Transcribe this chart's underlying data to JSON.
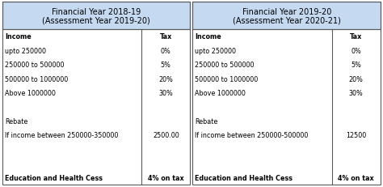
{
  "left_table": {
    "header_line1": "Financial Year 2018-19",
    "header_line2": "(Assessment Year 2019-20)",
    "header_bg": "#c5d9f1",
    "col1_header": "Income",
    "col2_header": "Tax",
    "rows": [
      [
        "upto 250000",
        "0%"
      ],
      [
        "250000 to 500000",
        "5%"
      ],
      [
        "500000 to 1000000",
        "20%"
      ],
      [
        "Above 1000000",
        "30%"
      ],
      [
        "",
        ""
      ],
      [
        "Rebate",
        ""
      ],
      [
        "If income between 250000-350000",
        "2500.00"
      ],
      [
        "",
        ""
      ],
      [
        "",
        ""
      ],
      [
        "Education and Health Cess",
        "4% on tax"
      ]
    ],
    "bold_rows": [
      4,
      9
    ]
  },
  "right_table": {
    "header_line1": "Financial Year 2019-20",
    "header_line2": "(Assessment Year 2020-21)",
    "header_bg": "#c5d9f1",
    "col1_header": "Income",
    "col2_header": "Tax",
    "rows": [
      [
        "upto 250000",
        "0%"
      ],
      [
        "250000 to 500000",
        "5%"
      ],
      [
        "500000 to 1000000",
        "20%"
      ],
      [
        "Above 1000000",
        "30%"
      ],
      [
        "",
        ""
      ],
      [
        "Rebate",
        ""
      ],
      [
        "If income between 250000-500000",
        "12500"
      ],
      [
        "",
        ""
      ],
      [
        "",
        ""
      ],
      [
        "Education and Health Cess",
        "4% on tax"
      ]
    ],
    "bold_rows": [
      4,
      9
    ]
  },
  "bg_color": "#ffffff",
  "border_color": "#5a5a5a",
  "text_color": "#000000",
  "font_size": 5.8,
  "header_font_size": 7.0,
  "fig_width": 4.74,
  "fig_height": 2.32,
  "dpi": 100
}
